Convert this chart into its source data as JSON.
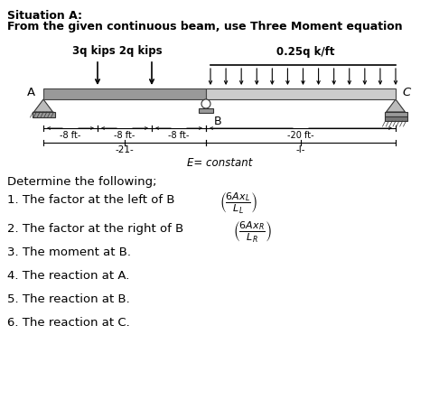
{
  "title_line1": "Situation A:",
  "title_line2": "From the given continuous beam, use Three Moment equation",
  "beam_label_load1": "3q kips 2q kips",
  "beam_label_load2": "0.25q k/ft",
  "label_A": "A",
  "label_B": "B",
  "label_C": "C",
  "dim1": "-8 ft-",
  "dim2": "-8 ft-",
  "dim3": "-8 ft-",
  "dim4": "-20 ft-",
  "dim_2I": "-21-",
  "dim_I": "-I-",
  "e_constant": "E= constant",
  "determine": "Determine the following;",
  "item1": "1. The factor at the left of B ",
  "item2": "2. The factor at the right of B ",
  "item3": "3. The moment at B.",
  "item4": "4. The reaction at A.",
  "item5": "5. The reaction at B.",
  "item6": "6. The reaction at C.",
  "bg_color": "#ffffff",
  "text_color": "#000000",
  "beam_color_dark": "#999999",
  "beam_color_light": "#cccccc",
  "beam_edge": "#444444",
  "support_face": "#aaaaaa",
  "support_edge": "#333333"
}
